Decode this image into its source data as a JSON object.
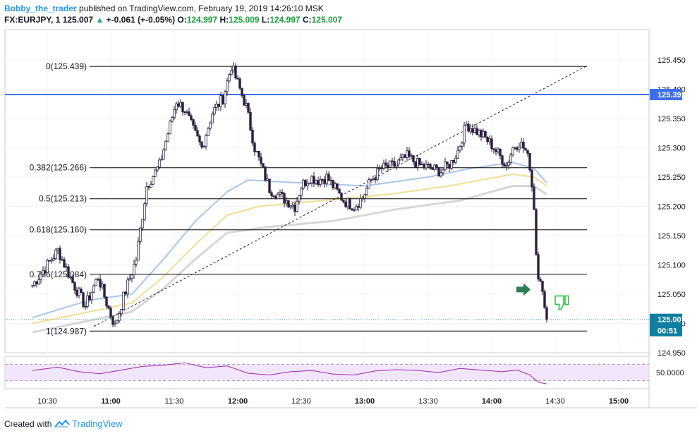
{
  "header": {
    "author": "Bobby_the_trader",
    "published_text": "published on TradingView.com, February 19, 2019 14:26:10 MSK",
    "symbol": "FX:EURJPY, 1",
    "last": "125.007",
    "change_arrow": "▲",
    "change": "+-0.061 (+-0.05%)",
    "o_label": "O:",
    "o_value": "124.997",
    "h_label": "H:",
    "h_value": "125.009",
    "l_label": "L:",
    "l_value": "124.997",
    "c_label": "C:",
    "c_value": "125.007"
  },
  "footer": {
    "created_with": "Created with",
    "brand": "TradingView",
    "logo_icon": "tradingview-logo-icon"
  },
  "colors": {
    "candle_body": "#2a1f3d",
    "ma_fast": "#a9c6ea",
    "ma_mid": "#f3dd94",
    "ma_slow": "#d6d6d6",
    "horizontal_line": "#3b6fe8",
    "rsi": "#9c27b0",
    "rsi_band": "#f1e6fb",
    "arrow_green": "#2f7d55",
    "thumb_green": "#2fc44a"
  },
  "chart_data": {
    "type": "candlestick",
    "symbol": "FX:EURJPY",
    "interval": "1",
    "x_axis_ticks": [
      "10:30",
      "11:00",
      "11:30",
      "12:00",
      "12:30",
      "13:00",
      "13:30",
      "14:00",
      "14:30",
      "15:00"
    ],
    "y_axis_ticks": [
      "125.450",
      "125.400",
      "125.350",
      "125.300",
      "125.250",
      "125.200",
      "125.150",
      "125.100",
      "125.050",
      "125.000",
      "124.950"
    ],
    "ylim": [
      124.945,
      125.48
    ],
    "price_labels": {
      "horizontal_line": "125.391",
      "last_price": "125.007",
      "countdown": "00:51"
    },
    "fibonacci": [
      {
        "label": "0(125.439)",
        "value": 125.439
      },
      {
        "label": "0.382(125.266)",
        "value": 125.266
      },
      {
        "label": "0.5(125.213)",
        "value": 125.213
      },
      {
        "label": "0.618(125.160)",
        "value": 125.16
      },
      {
        "label": "0.786(125.084)",
        "value": 125.084
      },
      {
        "label": "1(124.987)",
        "value": 124.987
      }
    ],
    "fib_span_time": [
      "11:00",
      "14:45"
    ],
    "trend_line": {
      "from": {
        "time": "10:52",
        "value": 124.995
      },
      "to": {
        "time": "14:45",
        "value": 125.44
      }
    },
    "horizontal_line": 125.391,
    "price_path": [
      {
        "time": "10:23",
        "value": 125.065
      },
      {
        "time": "10:29",
        "value": 125.095
      },
      {
        "time": "10:35",
        "value": 125.125
      },
      {
        "time": "10:42",
        "value": 125.07
      },
      {
        "time": "10:48",
        "value": 125.03
      },
      {
        "time": "10:54",
        "value": 125.08
      },
      {
        "time": "10:58",
        "value": 125.035
      },
      {
        "time": "11:02",
        "value": 124.995
      },
      {
        "time": "11:06",
        "value": 125.045
      },
      {
        "time": "11:12",
        "value": 125.11
      },
      {
        "time": "11:17",
        "value": 125.235
      },
      {
        "time": "11:23",
        "value": 125.27
      },
      {
        "time": "11:27",
        "value": 125.325
      },
      {
        "time": "11:31",
        "value": 125.38
      },
      {
        "time": "11:35",
        "value": 125.365
      },
      {
        "time": "11:39",
        "value": 125.33
      },
      {
        "time": "11:43",
        "value": 125.3
      },
      {
        "time": "11:48",
        "value": 125.36
      },
      {
        "time": "11:53",
        "value": 125.385
      },
      {
        "time": "11:57",
        "value": 125.44
      },
      {
        "time": "12:01",
        "value": 125.4
      },
      {
        "time": "12:04",
        "value": 125.37
      },
      {
        "time": "12:08",
        "value": 125.3
      },
      {
        "time": "12:11",
        "value": 125.27
      },
      {
        "time": "12:15",
        "value": 125.23
      },
      {
        "time": "12:19",
        "value": 125.22
      },
      {
        "time": "12:23",
        "value": 125.21
      },
      {
        "time": "12:27",
        "value": 125.2
      },
      {
        "time": "12:30",
        "value": 125.235
      },
      {
        "time": "12:34",
        "value": 125.25
      },
      {
        "time": "12:38",
        "value": 125.245
      },
      {
        "time": "12:42",
        "value": 125.25
      },
      {
        "time": "12:46",
        "value": 125.23
      },
      {
        "time": "12:50",
        "value": 125.21
      },
      {
        "time": "12:55",
        "value": 125.2
      },
      {
        "time": "12:59",
        "value": 125.215
      },
      {
        "time": "13:03",
        "value": 125.245
      },
      {
        "time": "13:08",
        "value": 125.265
      },
      {
        "time": "13:14",
        "value": 125.27
      },
      {
        "time": "13:20",
        "value": 125.285
      },
      {
        "time": "13:26",
        "value": 125.27
      },
      {
        "time": "13:31",
        "value": 125.265
      },
      {
        "time": "13:36",
        "value": 125.26
      },
      {
        "time": "13:41",
        "value": 125.275
      },
      {
        "time": "13:44",
        "value": 125.295
      },
      {
        "time": "13:48",
        "value": 125.34
      },
      {
        "time": "13:52",
        "value": 125.33
      },
      {
        "time": "13:56",
        "value": 125.32
      },
      {
        "time": "14:00",
        "value": 125.305
      },
      {
        "time": "14:04",
        "value": 125.285
      },
      {
        "time": "14:07",
        "value": 125.27
      },
      {
        "time": "14:10",
        "value": 125.3
      },
      {
        "time": "14:13",
        "value": 125.31
      },
      {
        "time": "14:16",
        "value": 125.295
      },
      {
        "time": "14:18",
        "value": 125.27
      },
      {
        "time": "14:20",
        "value": 125.2
      },
      {
        "time": "14:21",
        "value": 125.12
      },
      {
        "time": "14:22",
        "value": 125.085
      },
      {
        "time": "14:23",
        "value": 125.08
      },
      {
        "time": "14:24",
        "value": 125.05
      },
      {
        "time": "14:25",
        "value": 125.02
      },
      {
        "time": "14:26",
        "value": 125.007
      }
    ],
    "moving_averages": [
      {
        "name": "",
        "color": "#a9c6ea",
        "values": [
          {
            "time": "10:23",
            "value": 125.01
          },
          {
            "time": "10:50",
            "value": 125.04
          },
          {
            "time": "11:10",
            "value": 125.05
          },
          {
            "time": "11:25",
            "value": 125.11
          },
          {
            "time": "11:40",
            "value": 125.175
          },
          {
            "time": "11:55",
            "value": 125.225
          },
          {
            "time": "12:05",
            "value": 125.245
          },
          {
            "time": "12:30",
            "value": 125.24
          },
          {
            "time": "13:00",
            "value": 125.235
          },
          {
            "time": "13:30",
            "value": 125.25
          },
          {
            "time": "13:50",
            "value": 125.265
          },
          {
            "time": "14:10",
            "value": 125.275
          },
          {
            "time": "14:20",
            "value": 125.265
          },
          {
            "time": "14:26",
            "value": 125.24
          }
        ]
      },
      {
        "name": "",
        "color": "#f3dd94",
        "values": [
          {
            "time": "10:23",
            "value": 125.0
          },
          {
            "time": "10:50",
            "value": 125.02
          },
          {
            "time": "11:10",
            "value": 125.035
          },
          {
            "time": "11:25",
            "value": 125.08
          },
          {
            "time": "11:40",
            "value": 125.135
          },
          {
            "time": "11:55",
            "value": 125.185
          },
          {
            "time": "12:10",
            "value": 125.2
          },
          {
            "time": "12:40",
            "value": 125.21
          },
          {
            "time": "13:10",
            "value": 125.22
          },
          {
            "time": "13:40",
            "value": 125.235
          },
          {
            "time": "14:10",
            "value": 125.255
          },
          {
            "time": "14:20",
            "value": 125.25
          },
          {
            "time": "14:26",
            "value": 125.235
          }
        ]
      },
      {
        "name": "",
        "color": "#d6d6d6",
        "values": [
          {
            "time": "10:23",
            "value": 124.985
          },
          {
            "time": "10:50",
            "value": 125.005
          },
          {
            "time": "11:10",
            "value": 125.02
          },
          {
            "time": "11:25",
            "value": 125.06
          },
          {
            "time": "11:40",
            "value": 125.11
          },
          {
            "time": "11:55",
            "value": 125.155
          },
          {
            "time": "12:15",
            "value": 125.165
          },
          {
            "time": "12:45",
            "value": 125.175
          },
          {
            "time": "13:15",
            "value": 125.195
          },
          {
            "time": "13:45",
            "value": 125.21
          },
          {
            "time": "14:10",
            "value": 125.235
          },
          {
            "time": "14:20",
            "value": 125.235
          },
          {
            "time": "14:26",
            "value": 125.22
          }
        ]
      }
    ],
    "rsi": {
      "tick_label": "50.0000",
      "band": [
        30,
        70
      ],
      "ylim": [
        10,
        90
      ],
      "values": [
        {
          "time": "10:23",
          "value": 55
        },
        {
          "time": "10:35",
          "value": 63
        },
        {
          "time": "10:45",
          "value": 52
        },
        {
          "time": "10:55",
          "value": 47
        },
        {
          "time": "11:05",
          "value": 56
        },
        {
          "time": "11:15",
          "value": 65
        },
        {
          "time": "11:25",
          "value": 68
        },
        {
          "time": "11:35",
          "value": 74
        },
        {
          "time": "11:45",
          "value": 62
        },
        {
          "time": "11:55",
          "value": 66
        },
        {
          "time": "12:05",
          "value": 48
        },
        {
          "time": "12:15",
          "value": 44
        },
        {
          "time": "12:25",
          "value": 52
        },
        {
          "time": "12:35",
          "value": 55
        },
        {
          "time": "12:45",
          "value": 46
        },
        {
          "time": "12:55",
          "value": 44
        },
        {
          "time": "13:05",
          "value": 54
        },
        {
          "time": "13:15",
          "value": 57
        },
        {
          "time": "13:25",
          "value": 55
        },
        {
          "time": "13:35",
          "value": 50
        },
        {
          "time": "13:45",
          "value": 60
        },
        {
          "time": "13:55",
          "value": 56
        },
        {
          "time": "14:05",
          "value": 52
        },
        {
          "time": "14:12",
          "value": 56
        },
        {
          "time": "14:18",
          "value": 44
        },
        {
          "time": "14:22",
          "value": 26
        },
        {
          "time": "14:26",
          "value": 22
        }
      ]
    },
    "annotations": [
      {
        "type": "arrow-right",
        "time": "14:17",
        "value": 125.058
      },
      {
        "type": "thumb-down",
        "time": "14:33",
        "value": 125.035
      }
    ],
    "grid": true
  }
}
